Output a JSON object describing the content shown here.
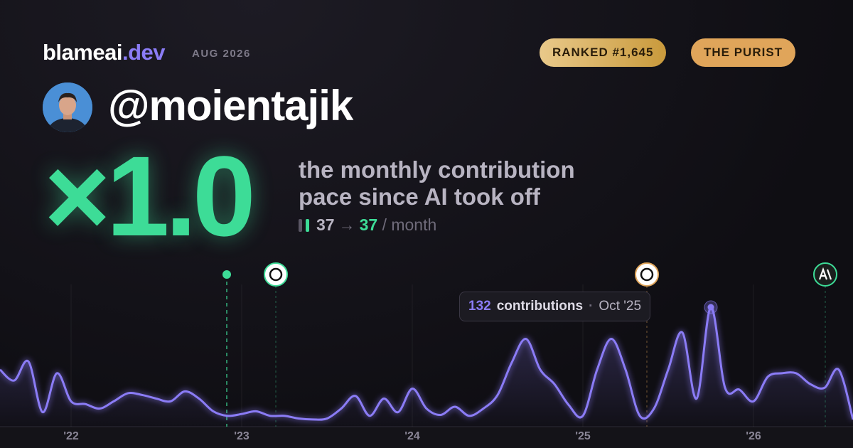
{
  "header": {
    "brand": "blameai",
    "brand_suffix": ".dev",
    "month": "AUG 2026",
    "rank": "RANKED #1,645",
    "badge": "THE PURIST"
  },
  "profile": {
    "handle": "@moientajik"
  },
  "headline": {
    "multiplier": "×1.0",
    "description_line1": "the monthly contribution",
    "description_line2": "pace since AI took off",
    "before": "37",
    "arrow": "→",
    "after": "37",
    "unit": "/ month"
  },
  "chart_data": {
    "type": "line",
    "color": "#8b7cf6",
    "categories": [
      null,
      null,
      null,
      null,
      null,
      "'22",
      null,
      null,
      null,
      null,
      null,
      null,
      null,
      null,
      null,
      null,
      null,
      "'23",
      null,
      null,
      null,
      null,
      null,
      null,
      null,
      null,
      null,
      null,
      null,
      "'24",
      null,
      null,
      null,
      null,
      null,
      null,
      null,
      null,
      null,
      null,
      null,
      "'25",
      null,
      null,
      null,
      null,
      null,
      null,
      null,
      null,
      null,
      null,
      null,
      "'26",
      null,
      null,
      null,
      null,
      null,
      null,
      null
    ],
    "values": [
      63,
      51,
      72,
      16,
      59,
      28,
      25,
      20,
      28,
      37,
      35,
      31,
      28,
      39,
      31,
      17,
      12,
      14,
      17,
      12,
      12,
      9,
      8,
      9,
      20,
      34,
      12,
      31,
      16,
      42,
      20,
      13,
      22,
      12,
      20,
      35,
      71,
      97,
      63,
      47,
      24,
      12,
      63,
      97,
      63,
      12,
      20,
      63,
      104,
      31,
      132,
      43,
      41,
      28,
      55,
      59,
      59,
      47,
      43,
      63,
      8
    ],
    "tooltip": {
      "label": "contributions",
      "month": "Oct '25"
    }
  }
}
